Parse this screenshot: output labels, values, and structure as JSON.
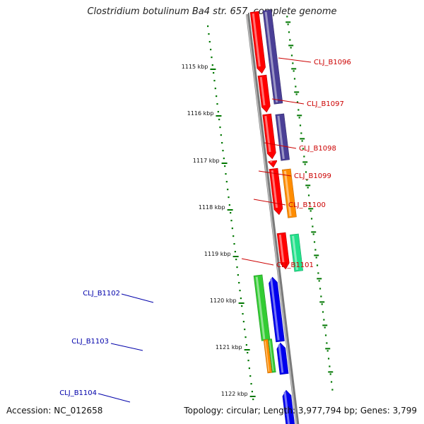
{
  "title": "Clostridium botulinum Ba4 str. 657, complete genome",
  "footer": {
    "accession": "Accession: NC_012658",
    "summary": "Topology: circular; Length: 3,977,794 bp; Genes: 3,799"
  },
  "ruler": [
    {
      "label": "1115 kbp"
    },
    {
      "label": "1116 kbp"
    },
    {
      "label": "1117 kbp"
    },
    {
      "label": "1118 kbp"
    },
    {
      "label": "1119 kbp"
    },
    {
      "label": "1120 kbp"
    },
    {
      "label": "1121 kbp"
    },
    {
      "label": "1122 kbp"
    }
  ],
  "gene_labels": [
    {
      "text": "CLJ_B1096",
      "color": "#cc0000"
    },
    {
      "text": "CLJ_B1097",
      "color": "#cc0000"
    },
    {
      "text": "CLJ_B1098",
      "color": "#cc0000"
    },
    {
      "text": "CLJ_B1099",
      "color": "#cc0000"
    },
    {
      "text": "CLJ_B1100",
      "color": "#cc0000"
    },
    {
      "text": "CLJ_B1101",
      "color": "#cc0000"
    },
    {
      "text": "CLJ_B1102",
      "color": "#0000aa"
    },
    {
      "text": "CLJ_B1103",
      "color": "#0000aa"
    },
    {
      "text": "CLJ_B1104",
      "color": "#0000aa"
    }
  ],
  "colors": {
    "red": "#ff0000",
    "purple": "#4a3f96",
    "orange": "#ff8c00",
    "teal": "#22e08a",
    "green": "#33cc33",
    "blue": "#0000ee",
    "backbone": "#7a7a7a",
    "ticks": "#007700"
  }
}
